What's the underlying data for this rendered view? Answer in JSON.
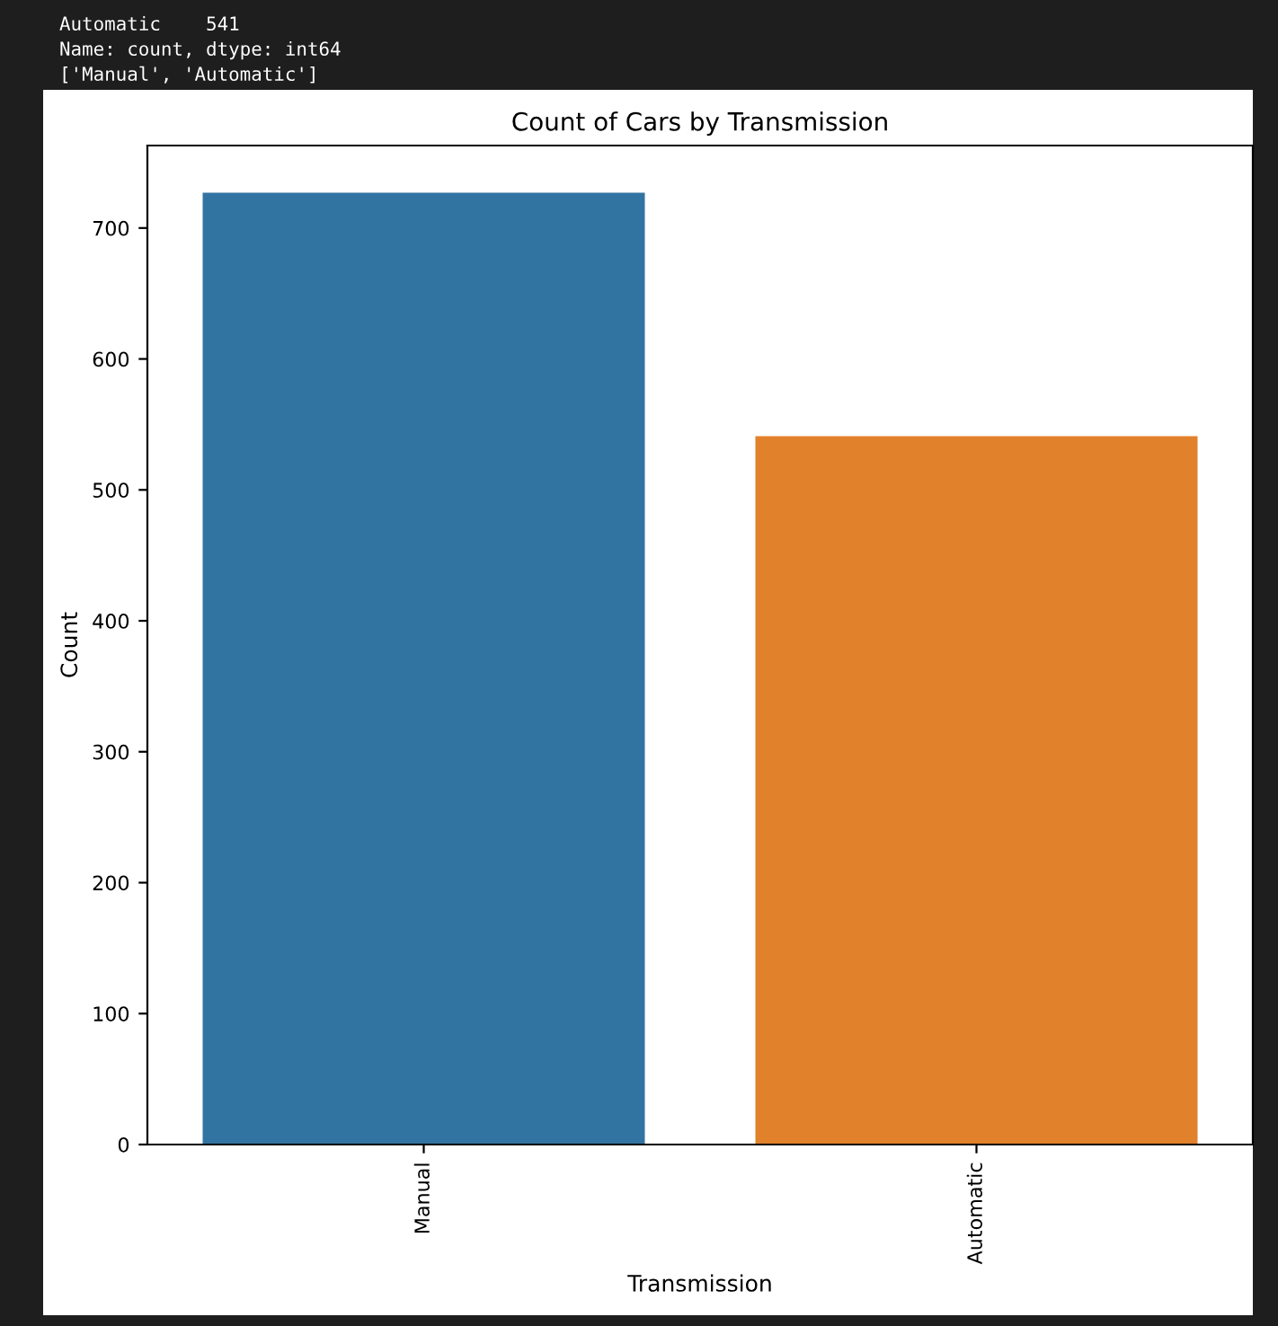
{
  "chart_data": {
    "type": "bar",
    "title": "Count of Cars by Transmission",
    "xlabel": "Transmission",
    "ylabel": "Count",
    "categories": [
      "Manual",
      "Automatic"
    ],
    "values": [
      727,
      541
    ],
    "colors": [
      "#3274a1",
      "#e1812c"
    ],
    "ylim": [
      0,
      763
    ],
    "yticks": [
      0,
      100,
      200,
      300,
      400,
      500,
      600,
      700
    ],
    "grid": false,
    "annotations": [
      "Automatic    541",
      "Name: count, dtype: int64",
      "['Manual', 'Automatic']"
    ]
  }
}
